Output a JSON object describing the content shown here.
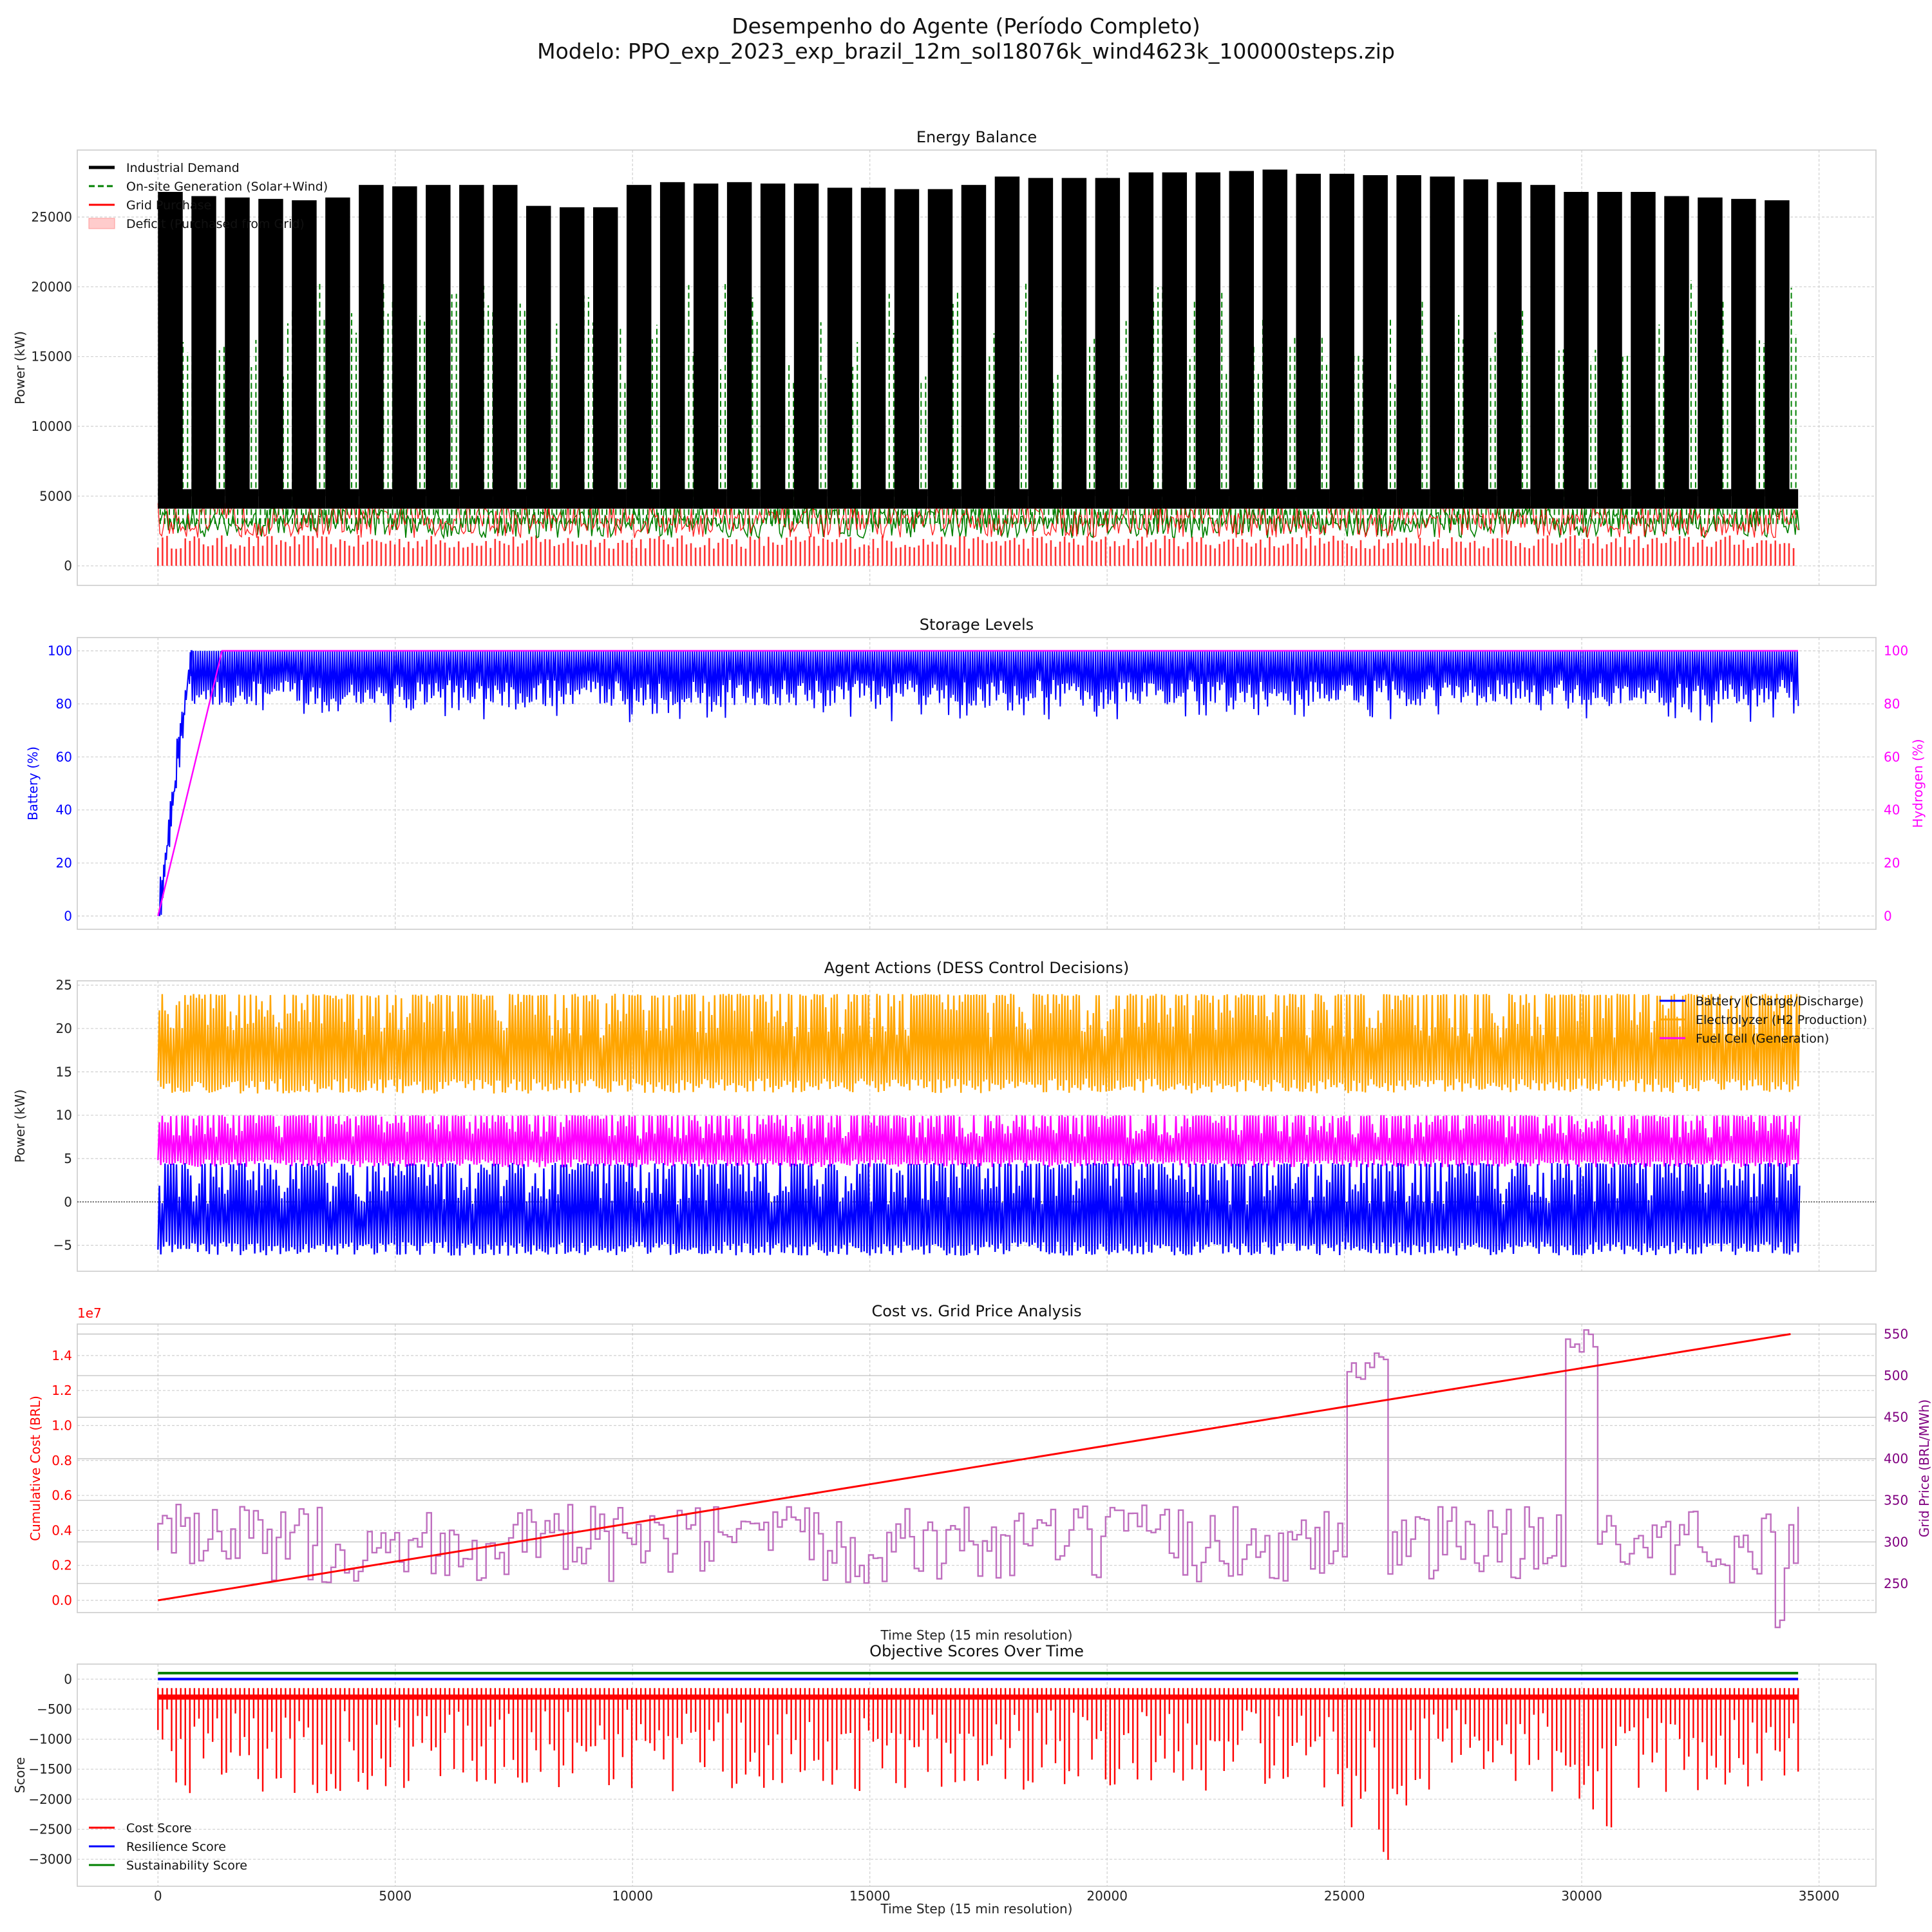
{
  "figure": {
    "title_line1": "Desempenho do Agente (Período Completo)",
    "title_line2": "Modelo: PPO_exp_2023_exp_brazil_12m_sol18076k_wind4623k_100000steps.zip"
  },
  "colors": {
    "black": "#000000",
    "green": "#008000",
    "red": "#ff0000",
    "blue": "#0000ff",
    "orange": "#ffa500",
    "magenta": "#ff00ff",
    "purple": "#bf6fbf",
    "price_axis": "#800080",
    "grid": "#cfcfcf",
    "spine": "#cccccc"
  },
  "chart_data": [
    {
      "id": "energy",
      "type": "line",
      "title": "Energy Balance",
      "xlabel": "",
      "ylabel": "Power (kW)",
      "xlim": [
        -1700,
        36200
      ],
      "ylim": [
        -1400,
        29800
      ],
      "yticks": [
        0,
        5000,
        10000,
        15000,
        20000,
        25000
      ],
      "x_range": [
        0,
        34560
      ],
      "legend_position": "upper left",
      "legend": [
        {
          "label": "Industrial Demand",
          "style": "line",
          "color": "#000000"
        },
        {
          "label": "On-site Generation (Solar+Wind)",
          "style": "dashed",
          "color": "#008000"
        },
        {
          "label": "Grid Purchase",
          "style": "line",
          "color": "#ff0000"
        },
        {
          "label": "Deficit (Purchased from Grid)",
          "style": "patch",
          "color": "#ff0000"
        }
      ],
      "series": [
        {
          "name": "Industrial Demand",
          "baseline_kW": 5000,
          "weekly_peaks_kW": [
            26800,
            26500,
            26400,
            26300,
            26200,
            26400,
            27300,
            27200,
            27300,
            27300,
            27300,
            25800,
            25700,
            25700,
            27300,
            27500,
            27400,
            27500,
            27400,
            27400,
            27100,
            27100,
            27000,
            27000,
            27300,
            27900,
            27800,
            27800,
            27800,
            28200,
            28200,
            28200,
            28300,
            28400,
            28100,
            28100,
            28000,
            28000,
            27900,
            27700,
            27500,
            27300,
            26800,
            26800,
            26800,
            26500,
            26400,
            26300,
            26200
          ]
        },
        {
          "name": "On-site Generation (Solar+Wind)",
          "baseline_kW": 3000,
          "peak_range_kW": [
            13000,
            20600
          ]
        },
        {
          "name": "Grid Purchase",
          "range_kW": [
            2000,
            4600
          ]
        },
        {
          "name": "Deficit (Purchased from Grid)",
          "range_kW": [
            0,
            2200
          ]
        }
      ]
    },
    {
      "id": "storage",
      "type": "line",
      "title": "Storage Levels",
      "xlabel": "",
      "ylabel": "Battery (%)",
      "ylabel_right": "Hydrogen (%)",
      "xlim": [
        -1700,
        36200
      ],
      "ylim": [
        -5,
        105
      ],
      "yticks": [
        0,
        20,
        40,
        60,
        80,
        100
      ],
      "series": [
        {
          "name": "Battery",
          "color": "#0000ff",
          "initial_ramp": {
            "x": [
              0,
              700
            ],
            "y": [
              0,
              100
            ]
          },
          "steady_range": [
            73,
            100
          ]
        },
        {
          "name": "Hydrogen",
          "color": "#ff00ff",
          "points": [
            [
              0,
              0
            ],
            [
              1350,
              100
            ],
            [
              34560,
              100
            ]
          ]
        }
      ]
    },
    {
      "id": "actions",
      "type": "line",
      "title": "Agent Actions (DESS Control Decisions)",
      "xlabel": "",
      "ylabel": "Power (kW)",
      "xlim": [
        -1700,
        36200
      ],
      "ylim": [
        -8,
        25.5
      ],
      "yticks": [
        -5,
        0,
        5,
        10,
        15,
        20,
        25
      ],
      "legend_position": "upper right",
      "legend": [
        {
          "label": "Battery (Charge/Discharge)",
          "color": "#0000ff"
        },
        {
          "label": "Electrolyzer (H2 Production)",
          "color": "#ffa500"
        },
        {
          "label": "Fuel Cell (Generation)",
          "color": "#ff00ff"
        }
      ],
      "series": [
        {
          "name": "Battery (Charge/Discharge)",
          "range_kW": [
            -6.2,
            4.5
          ]
        },
        {
          "name": "Electrolyzer (H2 Production)",
          "range_kW": [
            12.5,
            24
          ]
        },
        {
          "name": "Fuel Cell (Generation)",
          "range_kW": [
            4,
            10
          ]
        }
      ]
    },
    {
      "id": "cost",
      "type": "line",
      "title": "Cost vs. Grid Price Analysis",
      "xlabel": "Time Step (15 min resolution)",
      "ylabel": "Cumulative Cost (BRL)",
      "ylabel_right": "Grid Price (BRL/MWh)",
      "y_offset_label": "1e7",
      "xlim": [
        -1700,
        36200
      ],
      "ylim": [
        -0.07,
        1.58
      ],
      "yticks": [
        0.0,
        0.2,
        0.4,
        0.6,
        0.8,
        1.0,
        1.2,
        1.4
      ],
      "ylim_right": [
        215,
        562
      ],
      "yticks_right": [
        250,
        300,
        350,
        400,
        450,
        500,
        550
      ],
      "series": [
        {
          "name": "Cumulative Cost",
          "color": "#ff0000",
          "x": [
            0,
            34560
          ],
          "y": [
            0.0,
            1.53
          ]
        },
        {
          "name": "Grid Price",
          "color": "#bf6fbf",
          "typical_range": [
            250,
            345
          ],
          "spikes": [
            {
              "x_start": 24980,
              "x_end": 25900,
              "value": 530
            },
            {
              "x_start": 29650,
              "x_end": 30250,
              "value": 555
            },
            {
              "x_start": 34000,
              "x_end": 34200,
              "value": 222
            }
          ]
        }
      ]
    },
    {
      "id": "scores",
      "type": "line",
      "title": "Objective Scores Over Time",
      "xlabel": "Time Step (15 min resolution)",
      "ylabel": "Score",
      "xlim": [
        -1700,
        36200
      ],
      "ylim": [
        -3450,
        250
      ],
      "yticks": [
        -3000,
        -2500,
        -2000,
        -1500,
        -1000,
        -500,
        0
      ],
      "xticks": [
        0,
        5000,
        10000,
        15000,
        20000,
        25000,
        30000,
        35000
      ],
      "legend_position": "lower left",
      "legend": [
        {
          "label": "Cost Score",
          "color": "#ff0000"
        },
        {
          "label": "Resilience Score",
          "color": "#0000ff"
        },
        {
          "label": "Sustainability Score",
          "color": "#008000"
        }
      ],
      "series": [
        {
          "name": "Cost Score",
          "baseline": -300,
          "typical_min": -1900,
          "extreme_min": -3300
        },
        {
          "name": "Resilience Score",
          "value": 0
        },
        {
          "name": "Sustainability Score",
          "value": 100
        }
      ]
    }
  ]
}
